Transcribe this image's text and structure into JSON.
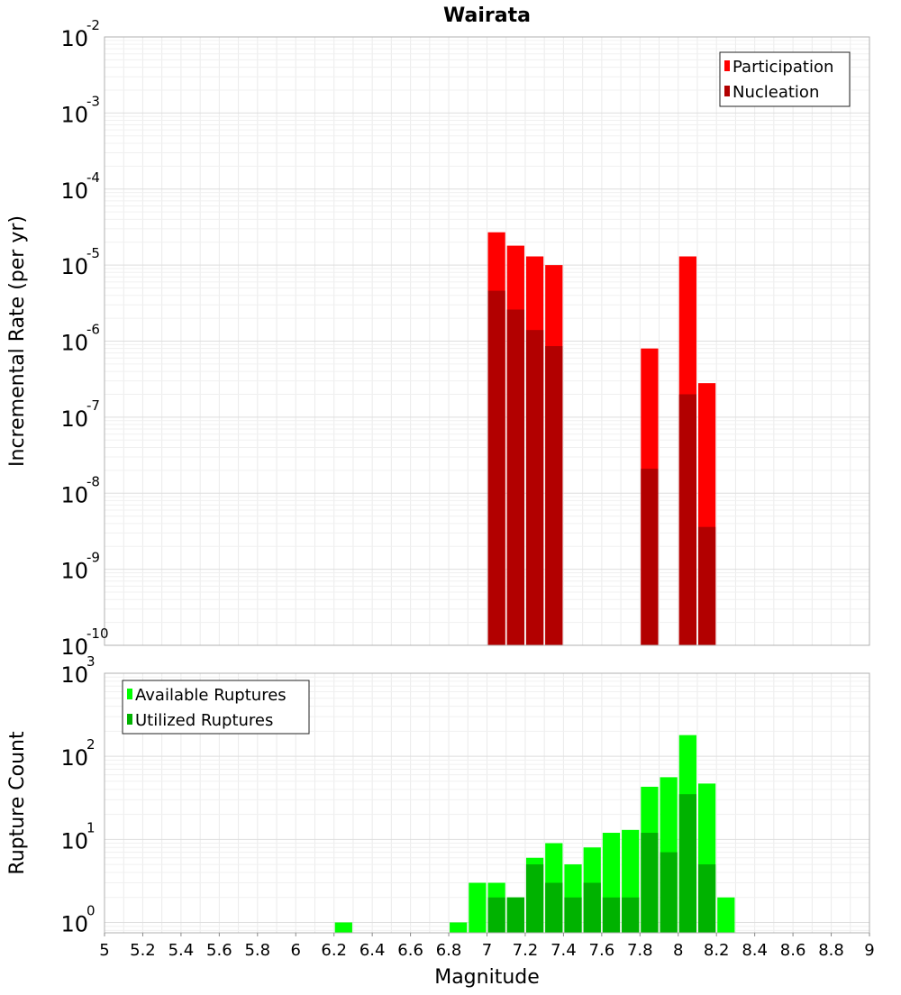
{
  "chart_data": [
    {
      "type": "bar",
      "title": "Wairata",
      "ylabel": "Incremental Rate (per yr)",
      "xlabel": "",
      "y_scale": "log",
      "ylim": [
        1e-10,
        0.01
      ],
      "xlim": [
        5,
        9
      ],
      "bar_width": 0.1,
      "x": [
        7.05,
        7.15,
        7.25,
        7.35,
        7.85,
        8.05,
        8.15
      ],
      "legend": {
        "position": "top-right"
      },
      "grid": true,
      "series": [
        {
          "name": "Participation",
          "color": "#ff0000",
          "values": [
            2.7e-05,
            1.8e-05,
            1.3e-05,
            1e-05,
            8e-07,
            1.3e-05,
            2.8e-07
          ]
        },
        {
          "name": "Nucleation",
          "color": "#b20000",
          "values": [
            4.6e-06,
            2.6e-06,
            1.4e-06,
            8.6e-07,
            2.1e-08,
            2e-07,
            3.6e-09
          ]
        }
      ],
      "y_ticks": [
        {
          "base": "10",
          "exp": "-10"
        },
        {
          "base": "10",
          "exp": "-9"
        },
        {
          "base": "10",
          "exp": "-8"
        },
        {
          "base": "10",
          "exp": "-7"
        },
        {
          "base": "10",
          "exp": "-6"
        },
        {
          "base": "10",
          "exp": "-5"
        },
        {
          "base": "10",
          "exp": "-4"
        },
        {
          "base": "10",
          "exp": "-3"
        },
        {
          "base": "10",
          "exp": "-2"
        }
      ]
    },
    {
      "type": "bar",
      "title": "",
      "ylabel": "Rupture Count",
      "xlabel": "Magnitude",
      "y_scale": "log",
      "ylim": [
        0.75,
        1000
      ],
      "xlim": [
        5,
        9
      ],
      "bar_width": 0.1,
      "x": [
        6.25,
        6.85,
        6.95,
        7.05,
        7.15,
        7.25,
        7.35,
        7.45,
        7.55,
        7.65,
        7.75,
        7.85,
        7.95,
        8.05,
        8.15,
        8.25
      ],
      "legend": {
        "position": "top-left"
      },
      "grid": true,
      "series": [
        {
          "name": "Available Ruptures",
          "color": "#00ff00",
          "values": [
            1,
            1,
            3,
            3,
            2,
            6,
            9,
            5,
            8,
            12,
            13,
            43,
            56,
            180,
            47,
            2
          ]
        },
        {
          "name": "Utilized Ruptures",
          "color": "#00b200",
          "values": [
            0,
            0,
            0,
            2,
            2,
            5,
            3,
            2,
            3,
            2,
            2,
            12,
            7,
            35,
            5,
            0
          ]
        }
      ],
      "y_ticks": [
        {
          "base": "10",
          "exp": "0"
        },
        {
          "base": "10",
          "exp": "1"
        },
        {
          "base": "10",
          "exp": "2"
        },
        {
          "base": "10",
          "exp": "3"
        }
      ],
      "x_ticks": [
        "5",
        "5.2",
        "5.4",
        "5.6",
        "5.8",
        "6",
        "6.2",
        "6.4",
        "6.6",
        "6.8",
        "7",
        "7.2",
        "7.4",
        "7.6",
        "7.8",
        "8",
        "8.2",
        "8.4",
        "8.6",
        "8.8",
        "9"
      ]
    }
  ]
}
